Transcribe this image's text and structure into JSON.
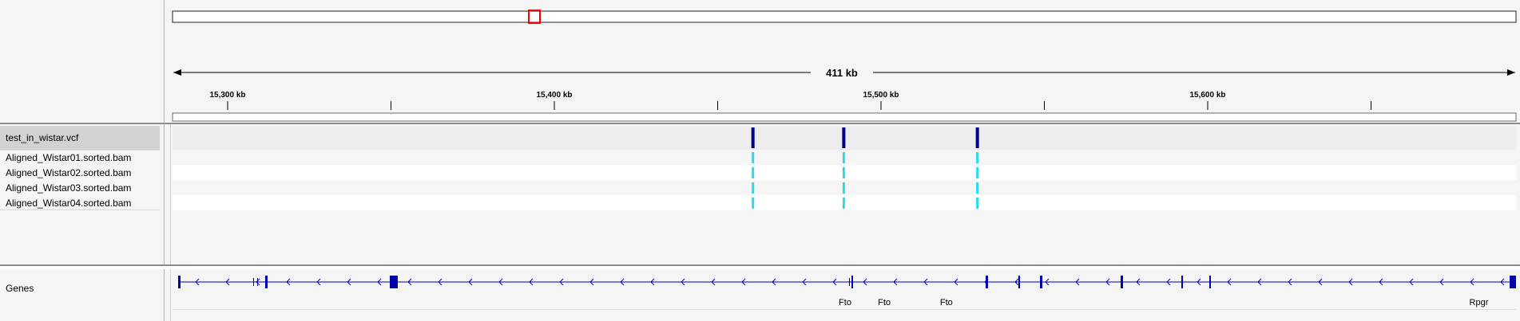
{
  "ruler": {
    "span_label": "411 kb",
    "ticks": [
      {
        "label": "15,300 kb",
        "pos_kb": 15300
      },
      {
        "label": "15,400 kb",
        "pos_kb": 15400
      },
      {
        "label": "15,500 kb",
        "pos_kb": 15500
      },
      {
        "label": "15,600 kb",
        "pos_kb": 15600
      }
    ],
    "minor_ticks_kb": [
      15350,
      15450,
      15550,
      15650
    ]
  },
  "tracks": {
    "vcf_name": "test_in_wistar.vcf",
    "samples": [
      "Aligned_Wistar01.sorted.bam",
      "Aligned_Wistar02.sorted.bam",
      "Aligned_Wistar03.sorted.bam",
      "Aligned_Wistar04.sorted.bam"
    ],
    "variant_positions_kb": [
      15460.8,
      15488.6,
      15529.5
    ]
  },
  "genes": {
    "track_name": "Genes",
    "labels": [
      {
        "text": "Fto",
        "pos_kb": 15489
      },
      {
        "text": "Fto",
        "pos_kb": 15501
      },
      {
        "text": "Fto",
        "pos_kb": 15520
      },
      {
        "text": "Rpgr",
        "pos_kb": 15683
      }
    ]
  },
  "colors": {
    "variant_site": "#00008b",
    "genotype": "#22ddee",
    "gene": "#0000aa",
    "viewport_box": "#ff0000"
  }
}
